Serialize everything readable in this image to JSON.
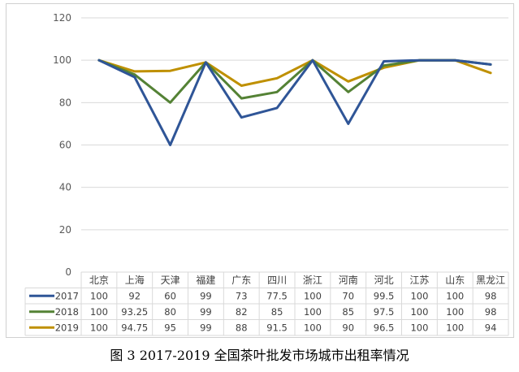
{
  "caption": "图 3    2017-2019 全国茶叶批发市场城市出租率情况",
  "chart_data": {
    "type": "line",
    "categories": [
      "北京",
      "上海",
      "天津",
      "福建",
      "广东",
      "四川",
      "浙江",
      "河南",
      "河北",
      "江苏",
      "山东",
      "黑龙江"
    ],
    "series": [
      {
        "name": "2017",
        "color": "#2f5597",
        "values": [
          100,
          92,
          60,
          99,
          73,
          77.5,
          100,
          70,
          99.5,
          100,
          100,
          98
        ]
      },
      {
        "name": "2018",
        "color": "#548235",
        "values": [
          100,
          93.25,
          80,
          99,
          82,
          85,
          100,
          85,
          97.5,
          100,
          100,
          98
        ]
      },
      {
        "name": "2019",
        "color": "#bf9000",
        "values": [
          100,
          94.75,
          95,
          99,
          88,
          91.5,
          100,
          90,
          96.5,
          100,
          100,
          94
        ]
      }
    ],
    "ylim": [
      0,
      120
    ],
    "yticks": [
      0,
      20,
      40,
      60,
      80,
      100,
      120
    ],
    "grid": true,
    "legend": "data-table"
  }
}
